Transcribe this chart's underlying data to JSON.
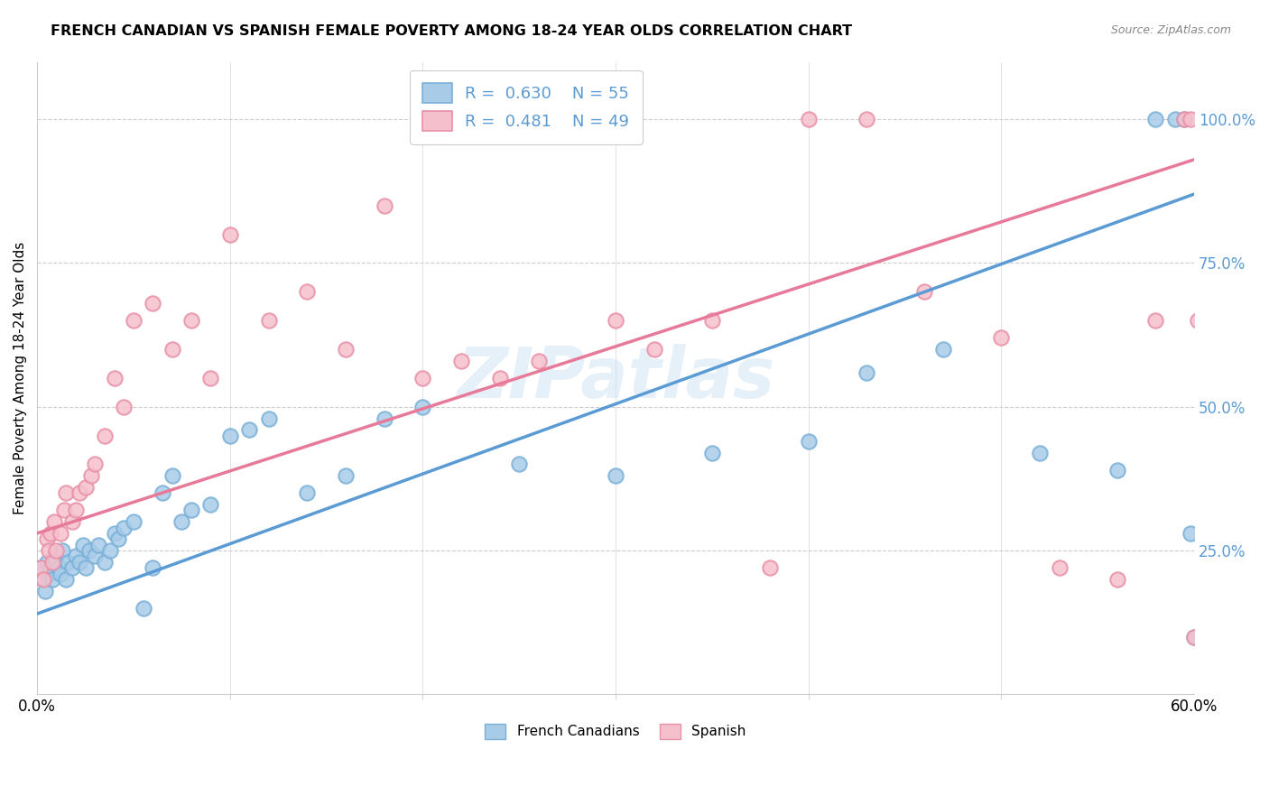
{
  "title": "FRENCH CANADIAN VS SPANISH FEMALE POVERTY AMONG 18-24 YEAR OLDS CORRELATION CHART",
  "source": "Source: ZipAtlas.com",
  "ylabel": "Female Poverty Among 18-24 Year Olds",
  "ytick_labels": [
    "25.0%",
    "50.0%",
    "75.0%",
    "100.0%"
  ],
  "ytick_values": [
    0.25,
    0.5,
    0.75,
    1.0
  ],
  "legend_label_blue": "French Canadians",
  "legend_label_pink": "Spanish",
  "blue_R": 0.63,
  "blue_N": 55,
  "pink_R": 0.481,
  "pink_N": 49,
  "blue_color": "#a8cce8",
  "blue_edge_color": "#7ab0d8",
  "pink_color": "#f5c0cc",
  "pink_edge_color": "#e890a8",
  "blue_line_color": "#5b9bd5",
  "pink_line_color": "#e87a99",
  "label_color": "#5b9bd5",
  "watermark": "ZIPatlas",
  "xmin": 0.0,
  "xmax": 0.6,
  "ymin": 0.0,
  "ymax": 1.1,
  "blue_line_x0": 0.0,
  "blue_line_y0": 0.14,
  "blue_line_x1": 0.6,
  "blue_line_y1": 0.87,
  "pink_line_x0": 0.0,
  "pink_line_y0": 0.28,
  "pink_line_x1": 0.6,
  "pink_line_y1": 0.93,
  "blue_x": [
    0.002,
    0.003,
    0.004,
    0.005,
    0.006,
    0.007,
    0.008,
    0.009,
    0.01,
    0.011,
    0.012,
    0.013,
    0.015,
    0.016,
    0.018,
    0.02,
    0.022,
    0.024,
    0.025,
    0.027,
    0.03,
    0.032,
    0.035,
    0.038,
    0.04,
    0.042,
    0.045,
    0.05,
    0.055,
    0.06,
    0.065,
    0.07,
    0.075,
    0.08,
    0.09,
    0.1,
    0.11,
    0.12,
    0.14,
    0.16,
    0.18,
    0.2,
    0.25,
    0.3,
    0.35,
    0.4,
    0.43,
    0.47,
    0.52,
    0.56,
    0.58,
    0.59,
    0.595,
    0.598,
    0.6
  ],
  "blue_y": [
    0.22,
    0.2,
    0.18,
    0.23,
    0.21,
    0.22,
    0.2,
    0.24,
    0.23,
    0.22,
    0.21,
    0.25,
    0.2,
    0.23,
    0.22,
    0.24,
    0.23,
    0.26,
    0.22,
    0.25,
    0.24,
    0.26,
    0.23,
    0.25,
    0.28,
    0.27,
    0.29,
    0.3,
    0.15,
    0.22,
    0.35,
    0.38,
    0.3,
    0.32,
    0.33,
    0.45,
    0.46,
    0.48,
    0.35,
    0.38,
    0.48,
    0.5,
    0.4,
    0.38,
    0.42,
    0.44,
    0.56,
    0.6,
    0.42,
    0.39,
    1.0,
    1.0,
    1.0,
    0.28,
    0.1
  ],
  "pink_x": [
    0.002,
    0.003,
    0.005,
    0.006,
    0.007,
    0.008,
    0.009,
    0.01,
    0.012,
    0.014,
    0.015,
    0.018,
    0.02,
    0.022,
    0.025,
    0.028,
    0.03,
    0.035,
    0.04,
    0.045,
    0.05,
    0.06,
    0.07,
    0.08,
    0.09,
    0.1,
    0.12,
    0.14,
    0.16,
    0.18,
    0.2,
    0.22,
    0.24,
    0.26,
    0.3,
    0.32,
    0.35,
    0.38,
    0.4,
    0.43,
    0.46,
    0.5,
    0.53,
    0.56,
    0.58,
    0.595,
    0.598,
    0.6,
    0.602
  ],
  "pink_y": [
    0.22,
    0.2,
    0.27,
    0.25,
    0.28,
    0.23,
    0.3,
    0.25,
    0.28,
    0.32,
    0.35,
    0.3,
    0.32,
    0.35,
    0.36,
    0.38,
    0.4,
    0.45,
    0.55,
    0.5,
    0.65,
    0.68,
    0.6,
    0.65,
    0.55,
    0.8,
    0.65,
    0.7,
    0.6,
    0.85,
    0.55,
    0.58,
    0.55,
    0.58,
    0.65,
    0.6,
    0.65,
    0.22,
    1.0,
    1.0,
    0.7,
    0.62,
    0.22,
    0.2,
    0.65,
    1.0,
    1.0,
    0.1,
    0.65
  ]
}
